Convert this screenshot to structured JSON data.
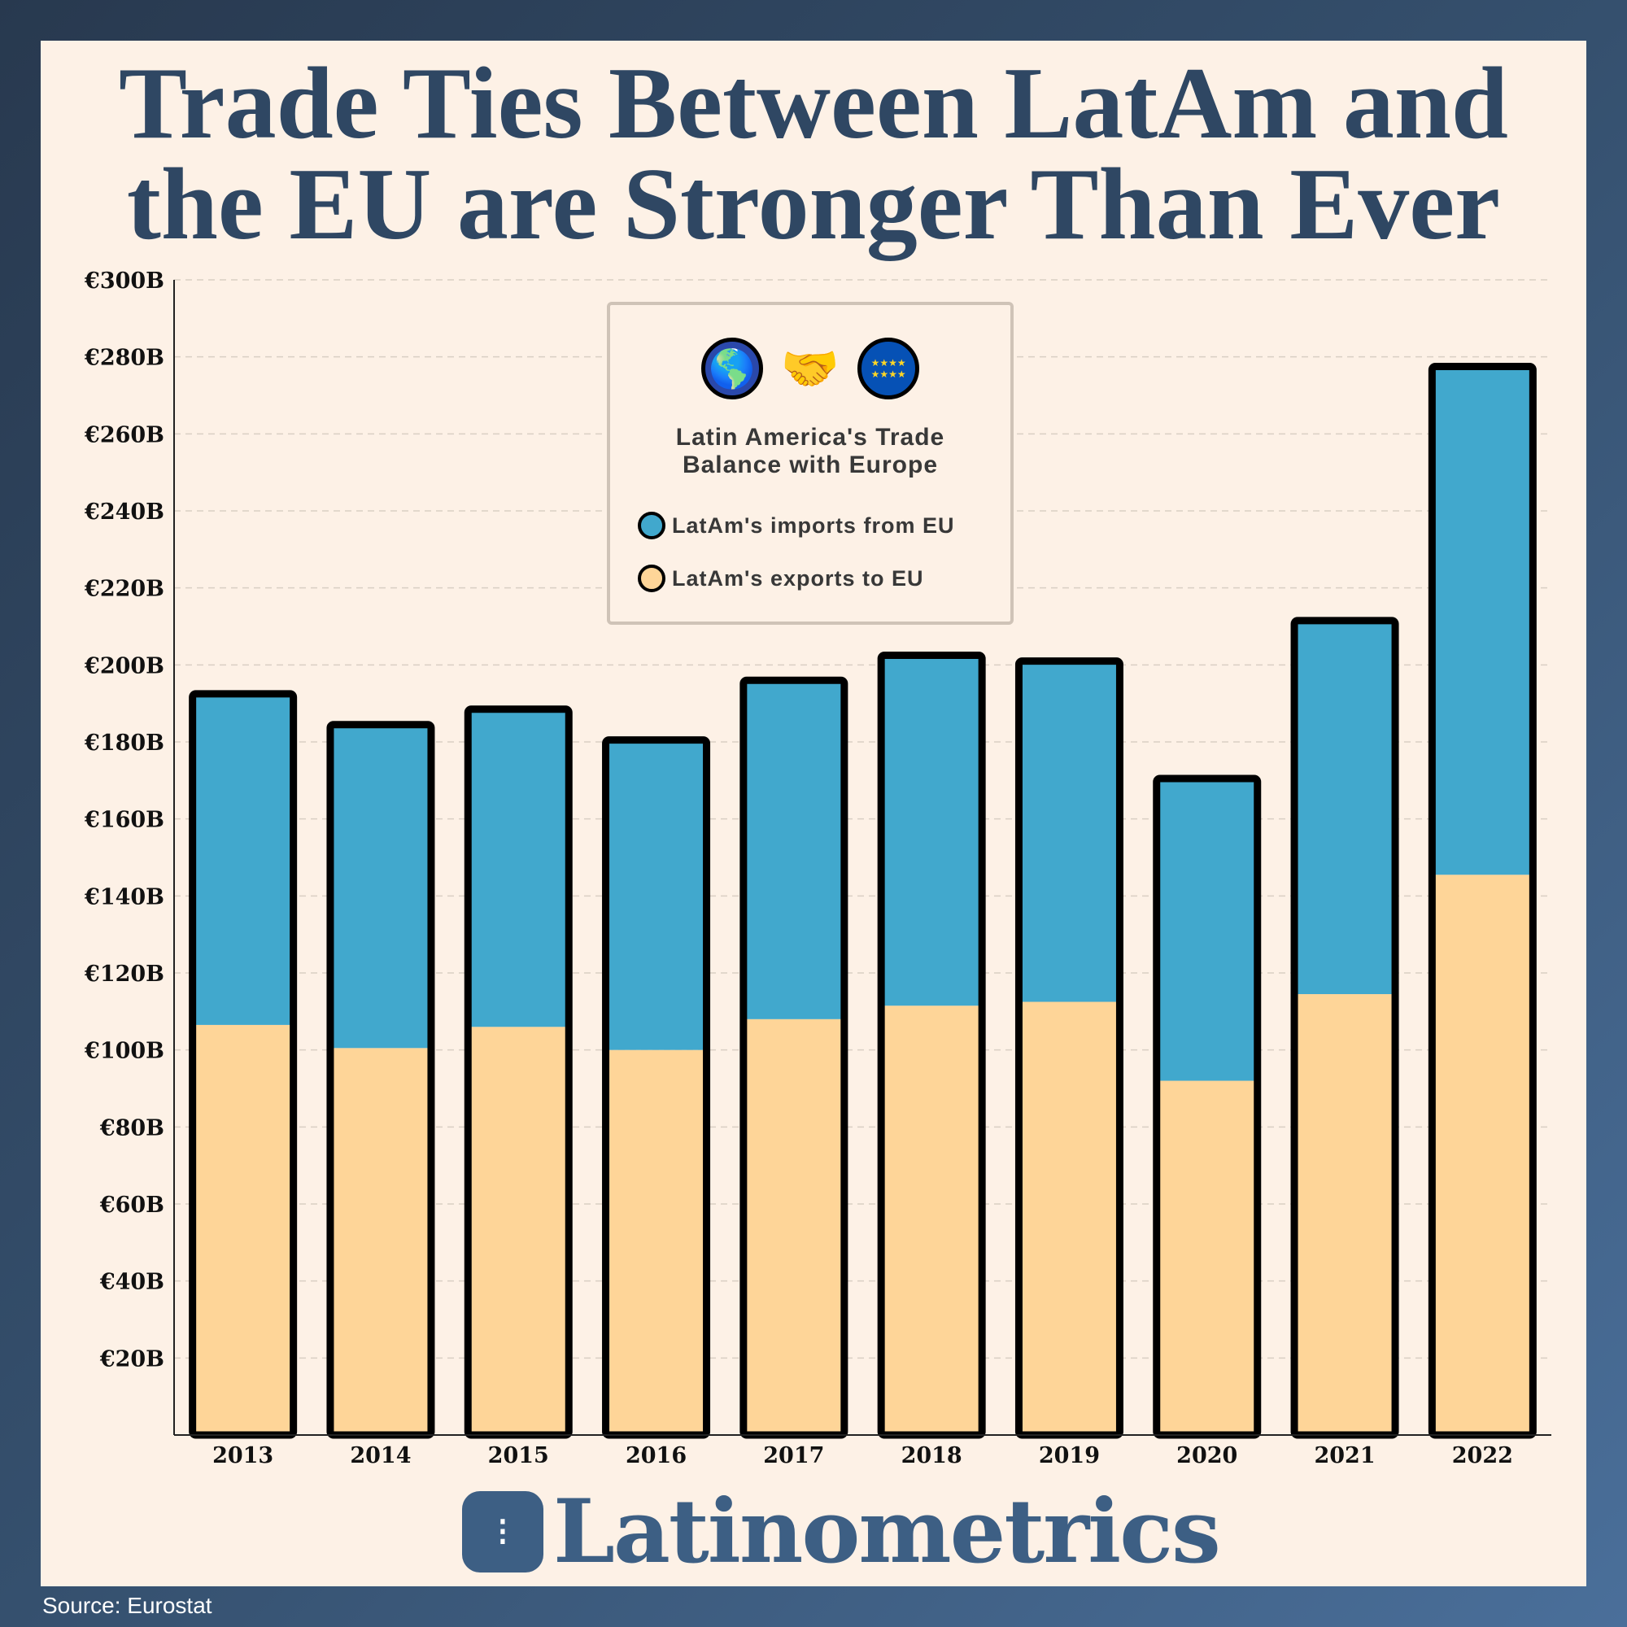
{
  "title": [
    "Trade Ties Between LatAm and",
    "the EU are Stronger Than Ever"
  ],
  "legend": {
    "icons": [
      "latin-america-globe-icon",
      "handshake-icon",
      "eu-flag-icon"
    ],
    "title_line1": "Latin America's Trade",
    "title_line2": "Balance with Europe",
    "items": [
      {
        "label": "LatAm's imports from EU",
        "color": "#41a8cd"
      },
      {
        "label": "LatAm's exports to EU",
        "color": "#fed598"
      }
    ]
  },
  "logo": {
    "text": "Latinometrics"
  },
  "source": "Source: Eurostat",
  "chart_data": {
    "type": "bar",
    "stacked": true,
    "categories": [
      "2013",
      "2014",
      "2015",
      "2016",
      "2017",
      "2018",
      "2019",
      "2020",
      "2021",
      "2022"
    ],
    "series": [
      {
        "name": "LatAm's exports to EU",
        "color": "#fed598",
        "values": [
          106.5,
          100.5,
          106,
          100,
          108,
          111.5,
          112.5,
          92,
          114.5,
          145.5
        ]
      },
      {
        "name": "LatAm's imports from EU",
        "color": "#41a8cd",
        "values": [
          86,
          84,
          82.5,
          80.5,
          88,
          91,
          88.5,
          78.5,
          97,
          132
        ]
      }
    ],
    "ylim": [
      0,
      300
    ],
    "yticks": [
      20,
      40,
      60,
      80,
      100,
      120,
      140,
      160,
      180,
      200,
      220,
      240,
      260,
      280,
      300
    ],
    "ytick_labels": [
      "€20B",
      "€40B",
      "€60B",
      "€80B",
      "€100B",
      "€120B",
      "€140B",
      "€160B",
      "€180B",
      "€200B",
      "€220B",
      "€240B",
      "€260B",
      "€280B",
      "€300B"
    ],
    "unit": "€ billions",
    "grid": true,
    "legend_position": "top-center"
  }
}
